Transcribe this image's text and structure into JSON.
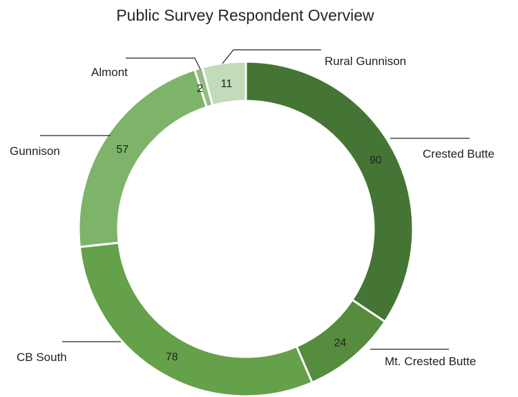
{
  "chart_data": {
    "type": "pie",
    "subtype": "donut",
    "title": "Public Survey Respondent Overview",
    "categories": [
      "Crested Butte",
      "Mt. Crested Butte",
      "CB South",
      "Gunnison",
      "Almont",
      "Rural Gunnison"
    ],
    "values": [
      90,
      24,
      78,
      57,
      2,
      11
    ],
    "colors": [
      "#457534",
      "#558c3e",
      "#65a04a",
      "#7eb36a",
      "#92bd82",
      "#c3dbb8"
    ],
    "legend": "none",
    "data_labels": "on-slice"
  }
}
